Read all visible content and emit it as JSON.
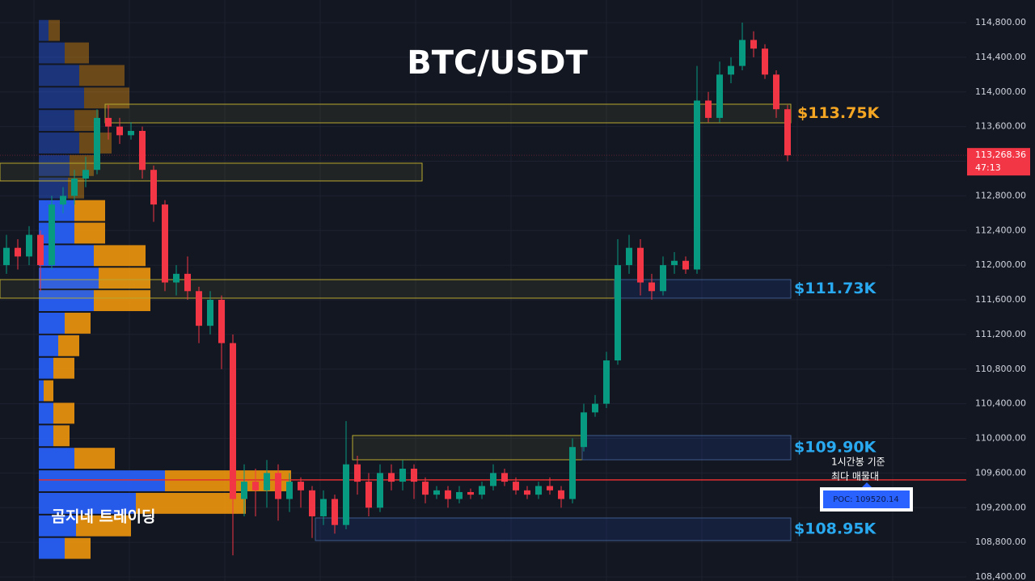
{
  "chart_data": {
    "type": "candlestick",
    "title": "BTC/USDT",
    "watermark": "곰지네 트레이딩",
    "up_color": "#089981",
    "down_color": "#f23645",
    "ylim": [
      108400,
      114800
    ],
    "yticks": [
      {
        "value": 108400,
        "label": "108,400.00"
      },
      {
        "value": 108800,
        "label": "108,800.00"
      },
      {
        "value": 109200,
        "label": "109,200.00"
      },
      {
        "value": 109600,
        "label": "109,600.00"
      },
      {
        "value": 110000,
        "label": "110,000.00"
      },
      {
        "value": 110400,
        "label": "110,400.00"
      },
      {
        "value": 110800,
        "label": "110,800.00"
      },
      {
        "value": 111200,
        "label": "111,200.00"
      },
      {
        "value": 111600,
        "label": "111,600.00"
      },
      {
        "value": 112000,
        "label": "112,000.00"
      },
      {
        "value": 112400,
        "label": "112,400.00"
      },
      {
        "value": 112800,
        "label": "112,800.00"
      },
      {
        "value": 113200,
        "label": "113,200.00"
      },
      {
        "value": 113600,
        "label": "113,600.00"
      },
      {
        "value": 114000,
        "label": "114,000.00"
      },
      {
        "value": 114400,
        "label": "114,400.00"
      },
      {
        "value": 114800,
        "label": "114,800.00"
      }
    ],
    "grid": true,
    "open": [
      112000,
      112200,
      112100,
      112350,
      112000,
      112700,
      112800,
      113000,
      113100,
      113700,
      113600,
      113500,
      113550,
      113100,
      112700,
      111800,
      111900,
      111700,
      111300,
      111600,
      111100,
      109300,
      109500,
      109400,
      109600,
      109300,
      109500,
      109400,
      109100,
      109300,
      109000,
      109700,
      109500,
      109200,
      109600,
      109500,
      109650,
      109500,
      109350,
      109400,
      109300,
      109380,
      109350,
      109450,
      109600,
      109500,
      109400,
      109350,
      109450,
      109400,
      109300,
      109900,
      110300,
      110400,
      110900,
      112000,
      112200,
      111800,
      111700,
      112000,
      112050,
      111950,
      113900,
      113700,
      114200,
      114300,
      114600,
      114500,
      114200,
      113800
    ],
    "high": [
      112350,
      112300,
      112450,
      112400,
      112800,
      112900,
      113100,
      113250,
      113800,
      113850,
      113700,
      113650,
      113600,
      113150,
      112750,
      112000,
      112100,
      111750,
      111700,
      111650,
      111200,
      109700,
      109650,
      109750,
      109700,
      109600,
      109550,
      109450,
      109400,
      109350,
      110200,
      109800,
      109600,
      109700,
      109700,
      109750,
      109700,
      109550,
      109450,
      109450,
      109450,
      109420,
      109500,
      109700,
      109650,
      109550,
      109450,
      109500,
      109550,
      109450,
      110000,
      110400,
      110500,
      111000,
      112300,
      112350,
      112300,
      111900,
      112100,
      112150,
      112100,
      114300,
      114000,
      114350,
      114400,
      114800,
      114700,
      114550,
      114250,
      113850
    ],
    "low": [
      111900,
      111950,
      112000,
      111700,
      111950,
      112600,
      112700,
      112900,
      113050,
      113450,
      113400,
      113450,
      113000,
      112500,
      111700,
      111650,
      111600,
      111100,
      111200,
      110800,
      108650,
      109100,
      109100,
      109200,
      109050,
      109150,
      109200,
      108850,
      109000,
      108900,
      108950,
      109350,
      109100,
      109150,
      109400,
      109400,
      109300,
      109250,
      109300,
      109200,
      109250,
      109300,
      109300,
      109400,
      109450,
      109350,
      109300,
      109300,
      109350,
      109200,
      109250,
      109850,
      110250,
      110350,
      110850,
      111900,
      111650,
      111600,
      111650,
      111900,
      111900,
      111900,
      113650,
      113650,
      114100,
      114250,
      114400,
      114150,
      113700,
      113200
    ],
    "close": [
      112200,
      112100,
      112350,
      112000,
      112700,
      112800,
      113000,
      113100,
      113700,
      113600,
      113500,
      113550,
      113100,
      112700,
      111800,
      111900,
      111700,
      111300,
      111600,
      111100,
      109300,
      109500,
      109400,
      109600,
      109300,
      109500,
      109400,
      109100,
      109300,
      109000,
      109700,
      109500,
      109200,
      109600,
      109500,
      109650,
      109500,
      109350,
      109400,
      109300,
      109380,
      109350,
      109450,
      109600,
      109500,
      109400,
      109350,
      109450,
      109400,
      109300,
      109900,
      110300,
      110400,
      110900,
      112000,
      112200,
      111800,
      111700,
      112000,
      112050,
      111950,
      113900,
      113700,
      114200,
      114300,
      114600,
      114500,
      114200,
      113800,
      113268.36
    ],
    "last_price": {
      "value": 113268.36,
      "label": "113,268.36"
    },
    "countdown": "47:13",
    "profile": {
      "bins": [
        108600,
        108860,
        109120,
        109380,
        109640,
        109900,
        110160,
        110420,
        110680,
        110940,
        111200,
        111460,
        111720,
        111980,
        112240,
        112500,
        112760,
        113020,
        113280,
        113540,
        113800,
        114060,
        114320,
        114580,
        114840
      ],
      "buy": [
        32,
        46,
        120,
        156,
        44,
        18,
        18,
        6,
        18,
        24,
        32,
        68,
        74,
        68,
        44,
        44,
        36,
        38,
        50,
        44,
        56,
        50,
        32,
        12
      ],
      "sell": [
        32,
        68,
        136,
        156,
        50,
        20,
        26,
        12,
        26,
        26,
        32,
        70,
        64,
        64,
        38,
        38,
        20,
        30,
        40,
        30,
        56,
        56,
        30,
        14
      ],
      "buy_color": "#2962ff",
      "sell_color": "#f0960c"
    },
    "zones": [
      {
        "label": "$113.75K",
        "top": 113858,
        "bottom": 113643,
        "label_color": "#f5a623"
      },
      {
        "label": "$111.73K",
        "top": 111833,
        "bottom": 111619,
        "label_color": "#29a9f0"
      },
      {
        "label": "$109.90K",
        "top": 110033,
        "bottom": 109753,
        "label_color": "#29a9f0"
      },
      {
        "label": "$108.95K",
        "top": 109081,
        "bottom": 108820,
        "label_color": "#29a9f0"
      }
    ],
    "side_zone": {
      "top": 113177,
      "bottom": 112972
    },
    "poc": {
      "value": 109520.14,
      "label": "POC: 109520.14"
    },
    "annotation": [
      "1시간봉 기준",
      "최다 매물대"
    ]
  }
}
